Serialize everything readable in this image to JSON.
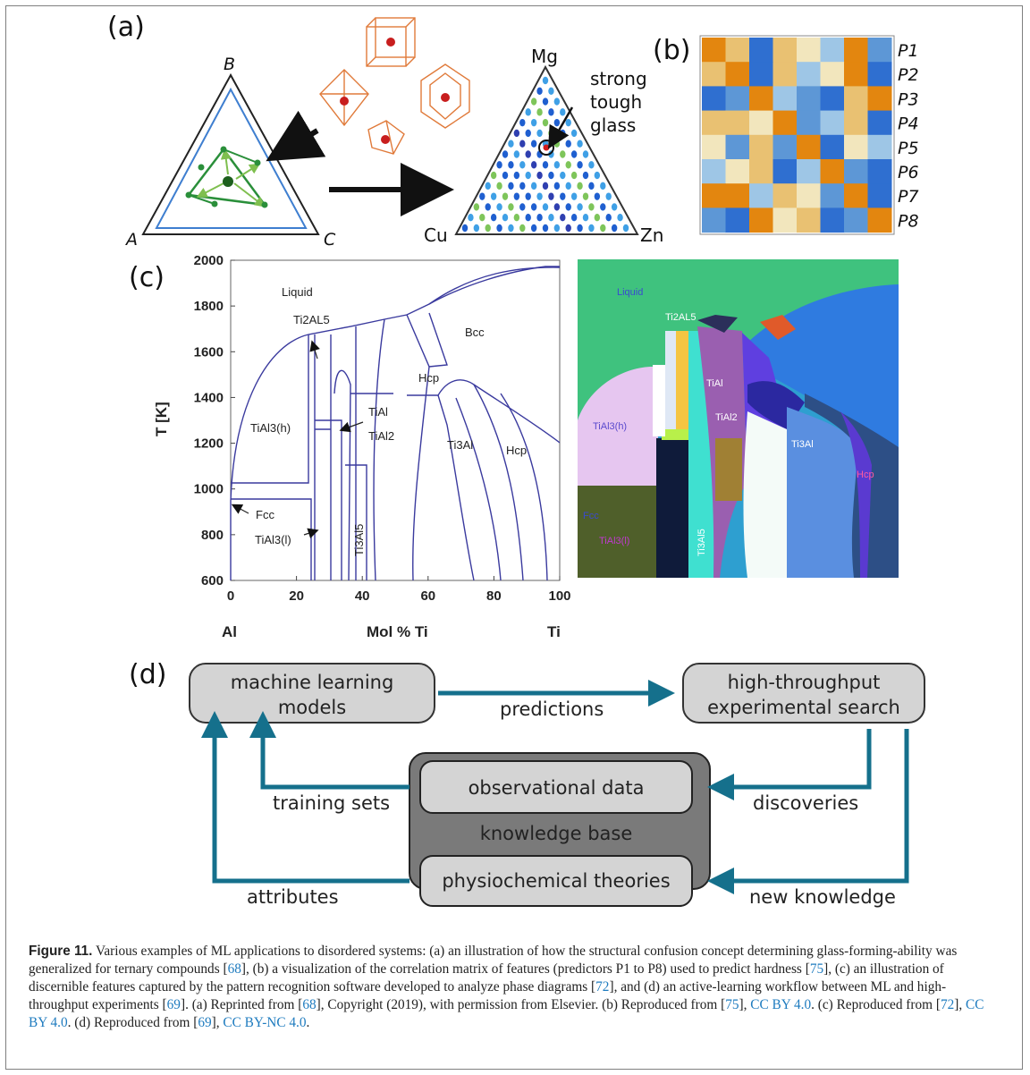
{
  "panels": {
    "a_letter": "(a)",
    "b_letter": "(b)",
    "c_letter": "(c)",
    "d_letter": "(d)"
  },
  "panel_a": {
    "left_vertices": {
      "top": "B",
      "left": "A",
      "right": "C"
    },
    "right_vertices": {
      "top": "Mg",
      "left": "Cu",
      "right": "Zn"
    },
    "annotation": [
      "strong",
      "tough",
      "glass"
    ]
  },
  "panel_b": {
    "rows": [
      "P1",
      "P2",
      "P3",
      "P4",
      "P5",
      "P6",
      "P7",
      "P8"
    ],
    "colors": {
      "orange": "#e3860f",
      "blue": "#2f6fd0",
      "light_blue": "#9ec6e6",
      "pale": "#f2e6bd",
      "mid_blue": "#5d97d6",
      "sand": "#e9c172"
    }
  },
  "panel_c": {
    "chart_data": {
      "type": "line",
      "xlabel": "Mol % Ti",
      "ylabel": "T [K]",
      "x_ticks": [
        "0",
        "20",
        "40",
        "60",
        "80",
        "100"
      ],
      "y_ticks": [
        "600",
        "800",
        "1000",
        "1200",
        "1400",
        "1600",
        "1800",
        "2000"
      ],
      "xlim": [
        0,
        100
      ],
      "ylim": [
        600,
        2000
      ],
      "x_end_labels": {
        "left": "Al",
        "right": "Ti"
      },
      "phase_labels": [
        "Liquid",
        "Ti2AL5",
        "Bcc",
        "TiAl",
        "Hcp",
        "TiAl2",
        "TiAl3(h)",
        "Ti3Al",
        "Hcp",
        "Fcc",
        "TiAl3(l)",
        "Ti3Al5"
      ],
      "line_color": "#3a3a9e"
    },
    "right_labels": [
      "Liquid",
      "Ti2AL5",
      "TiAl",
      "TiAl3(h)",
      "TiAl2",
      "Ti3Al",
      "Hcp",
      "Fcc",
      "TiAl3(l)",
      "Ti3Al5"
    ]
  },
  "panel_d": {
    "boxes": {
      "ml_models": [
        "machine learning",
        "models"
      ],
      "ht_search": [
        "high-throughput",
        "experimental search"
      ],
      "observational": "observational data",
      "knowledge_base": "knowledge base",
      "theories": "physiochemical theories"
    },
    "arrows": {
      "predictions": "predictions",
      "training_sets": "training sets",
      "discoveries": "discoveries",
      "attributes": "attributes",
      "new_knowledge": "new knowledge"
    },
    "arrow_color": "#15708c"
  },
  "caption": {
    "label": "Figure 11.",
    "text": "Various examples of ML applications to disordered systems: (a) an illustration of how the structural confusion concept determining glass-forming-ability was generalized for ternary compounds [68], (b) a visualization of the correlation matrix of features (predictors P1 to P8) used to predict hardness [75], (c) an illustration of discernible features captured by the pattern recognition software developed to analyze phase diagrams [72], and (d) an active-learning workflow between ML and high-throughput experiments [69]. (a) Reprinted from [68], Copyright (2019), with permission from Elsevier. (b) Reproduced from [75], CC BY 4.0. (c) Reproduced from [72], CC BY 4.0. (d) Reproduced from [69], CC BY-NC 4.0."
  }
}
